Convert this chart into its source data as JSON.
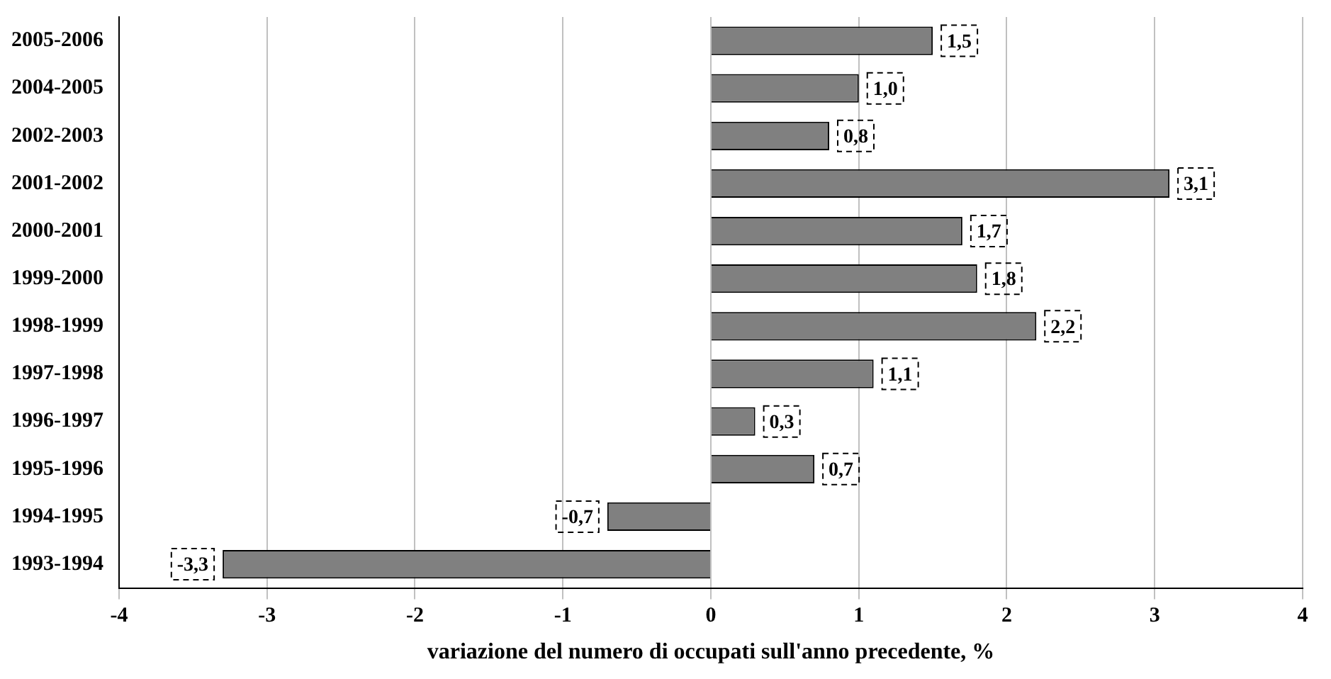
{
  "chart_data": {
    "type": "bar",
    "orientation": "horizontal",
    "xlabel": "variazione del numero di occupati sull'anno precedente, %",
    "categories": [
      "2005-2006",
      "2004-2005",
      "2002-2003",
      "2001-2002",
      "2000-2001",
      "1999-2000",
      "1998-1999",
      "1997-1998",
      "1996-1997",
      "1995-1996",
      "1994-1995",
      "1993-1994"
    ],
    "values": [
      1.5,
      1.0,
      0.8,
      3.1,
      1.7,
      1.8,
      2.2,
      1.1,
      0.3,
      0.7,
      -0.7,
      -3.3
    ],
    "value_labels": [
      "1,5",
      "1,0",
      "0,8",
      "3,1",
      "1,7",
      "1,8",
      "2,2",
      "1,1",
      "0,3",
      "0,7",
      "-0,7",
      "-3,3"
    ],
    "color": "#808080",
    "xlim": [
      -4,
      4
    ],
    "xticks": [
      -4,
      -3,
      -2,
      -1,
      0,
      1,
      2,
      3,
      4
    ],
    "grid": "x"
  }
}
